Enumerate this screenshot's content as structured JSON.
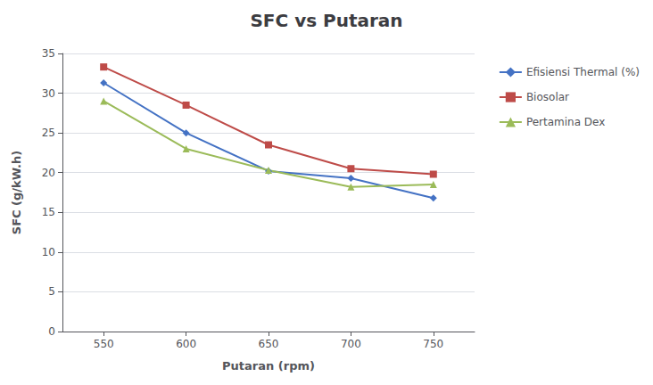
{
  "chart_data": {
    "type": "line",
    "title": "SFC vs Putaran",
    "xlabel": "Putaran (rpm)",
    "ylabel": "SFC (g/kW.h)",
    "x": [
      550,
      600,
      650,
      700,
      750
    ],
    "series": [
      {
        "name": "Efisiensi Thermal (%)",
        "color": "#4472C4",
        "marker": "diamond",
        "values": [
          31.3,
          25.0,
          20.2,
          19.3,
          16.8
        ]
      },
      {
        "name": "Biosolar",
        "color": "#BE4B48",
        "marker": "square",
        "values": [
          33.3,
          28.5,
          23.5,
          20.5,
          19.8
        ]
      },
      {
        "name": "Pertamina Dex",
        "color": "#9BBB59",
        "marker": "triangle",
        "values": [
          29.0,
          23.0,
          20.3,
          18.2,
          18.5
        ]
      }
    ],
    "xlim": [
      525,
      775
    ],
    "xticks": [
      550,
      600,
      650,
      700,
      750
    ],
    "ylim": [
      0,
      35
    ],
    "yticks": [
      0,
      5,
      10,
      15,
      20,
      25,
      30,
      35
    ],
    "grid": true,
    "legend": "right"
  }
}
